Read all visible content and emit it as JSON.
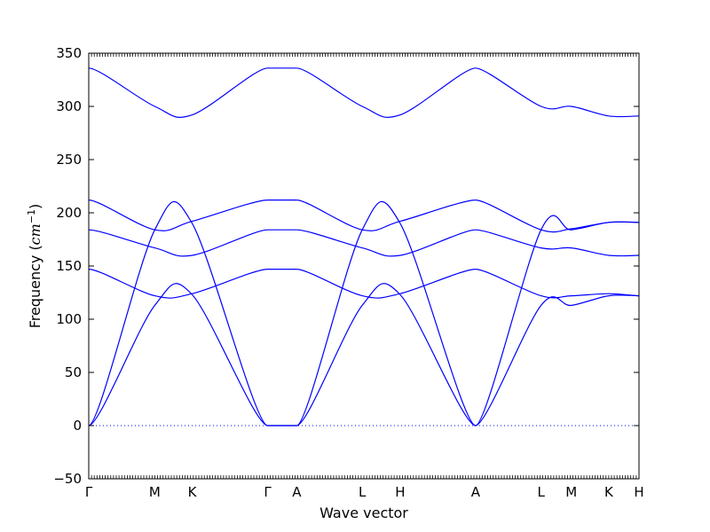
{
  "chart_data": {
    "type": "line",
    "xlabel": "Wave vector",
    "ylabel": {
      "prefix": "Frequency (",
      "unit_base": "cm",
      "unit_exp": "−1",
      "suffix": ")"
    },
    "ylim": [
      -50,
      350
    ],
    "yticks": [
      -50,
      0,
      50,
      100,
      150,
      200,
      250,
      300,
      350
    ],
    "grid": false,
    "zero_line": {
      "y": 0,
      "style": "dotted",
      "color": "#0000ff"
    },
    "line_color": "#0000ff",
    "high_symmetry_points": [
      {
        "label": "Γ",
        "pos": 0.0
      },
      {
        "label": "M",
        "pos": 0.12
      },
      {
        "label": "K",
        "pos": 0.188
      },
      {
        "label": "Γ",
        "pos": 0.325
      },
      {
        "label": "A",
        "pos": 0.378
      },
      {
        "label": "L",
        "pos": 0.497
      },
      {
        "label": "H",
        "pos": 0.566
      },
      {
        "label": "A",
        "pos": 0.703
      },
      {
        "label": "L",
        "pos": 0.822
      },
      {
        "label": "M",
        "pos": 0.877
      },
      {
        "label": "K",
        "pos": 0.945
      },
      {
        "label": "H",
        "pos": 1.0
      }
    ],
    "series": [
      {
        "values": [
          [
            0,
            336
          ],
          [
            0.12,
            300
          ],
          [
            0.188,
            292
          ],
          [
            0.325,
            336
          ]
        ],
        "segments": [
          [
            [
              0.0,
              336
            ],
            [
              0.12,
              300
            ],
            [
              0.188,
              292
            ],
            [
              0.325,
              336
            ]
          ],
          [
            [
              0.325,
              336
            ],
            [
              0.378,
              336
            ]
          ],
          [
            [
              0.378,
              336
            ],
            [
              0.497,
              300
            ],
            [
              0.566,
              292
            ],
            [
              0.703,
              336
            ]
          ],
          [
            [
              0.703,
              336
            ],
            [
              0.822,
              300
            ],
            [
              0.877,
              300
            ],
            [
              0.945,
              291
            ],
            [
              1.0,
              291
            ]
          ]
        ]
      },
      {
        "segments": [
          [
            [
              0.0,
              212
            ],
            [
              0.12,
              184
            ],
            [
              0.188,
              192
            ],
            [
              0.325,
              212
            ]
          ],
          [
            [
              0.325,
              212
            ],
            [
              0.378,
              212
            ]
          ],
          [
            [
              0.378,
              212
            ],
            [
              0.497,
              184
            ],
            [
              0.566,
              192
            ],
            [
              0.703,
              212
            ]
          ],
          [
            [
              0.703,
              212
            ],
            [
              0.822,
              184
            ],
            [
              0.877,
              185
            ],
            [
              0.945,
              191
            ],
            [
              1.0,
              191
            ]
          ]
        ]
      },
      {
        "segments": [
          [
            [
              0.0,
              184
            ],
            [
              0.12,
              167
            ],
            [
              0.188,
              160
            ],
            [
              0.325,
              184
            ]
          ],
          [
            [
              0.325,
              184
            ],
            [
              0.378,
              184
            ]
          ],
          [
            [
              0.378,
              184
            ],
            [
              0.497,
              167
            ],
            [
              0.566,
              160
            ],
            [
              0.703,
              184
            ]
          ],
          [
            [
              0.703,
              184
            ],
            [
              0.822,
              167
            ],
            [
              0.877,
              167
            ],
            [
              0.945,
              160
            ],
            [
              1.0,
              160
            ]
          ]
        ]
      },
      {
        "segments": [
          [
            [
              0.0,
              147
            ],
            [
              0.12,
              122
            ],
            [
              0.188,
              124
            ],
            [
              0.325,
              147
            ]
          ],
          [
            [
              0.325,
              147
            ],
            [
              0.378,
              147
            ]
          ],
          [
            [
              0.378,
              147
            ],
            [
              0.497,
              122
            ],
            [
              0.566,
              124
            ],
            [
              0.703,
              147
            ]
          ],
          [
            [
              0.703,
              147
            ],
            [
              0.822,
              122
            ],
            [
              0.877,
              122
            ],
            [
              0.945,
              124
            ],
            [
              1.0,
              122
            ]
          ]
        ]
      },
      {
        "segments": [
          [
            [
              0.0,
              0
            ],
            [
              0.12,
              184
            ],
            [
              0.188,
              190
            ],
            [
              0.325,
              0
            ]
          ],
          [
            [
              0.325,
              0
            ],
            [
              0.378,
              0
            ]
          ],
          [
            [
              0.378,
              0
            ],
            [
              0.497,
              184
            ],
            [
              0.566,
              190
            ],
            [
              0.703,
              0
            ]
          ],
          [
            [
              0.703,
              0
            ],
            [
              0.822,
              184
            ],
            [
              0.877,
              184
            ],
            [
              0.945,
              191
            ],
            [
              1.0,
              191
            ]
          ]
        ]
      },
      {
        "segments": [
          [
            [
              0.0,
              0
            ],
            [
              0.12,
              113
            ],
            [
              0.188,
              123
            ],
            [
              0.325,
              0
            ]
          ],
          [
            [
              0.325,
              0
            ],
            [
              0.378,
              0
            ]
          ],
          [
            [
              0.378,
              0
            ],
            [
              0.497,
              113
            ],
            [
              0.566,
              123
            ],
            [
              0.703,
              0
            ]
          ],
          [
            [
              0.703,
              0
            ],
            [
              0.822,
              113
            ],
            [
              0.877,
              113
            ],
            [
              0.945,
              122
            ],
            [
              1.0,
              122
            ]
          ]
        ]
      }
    ]
  }
}
